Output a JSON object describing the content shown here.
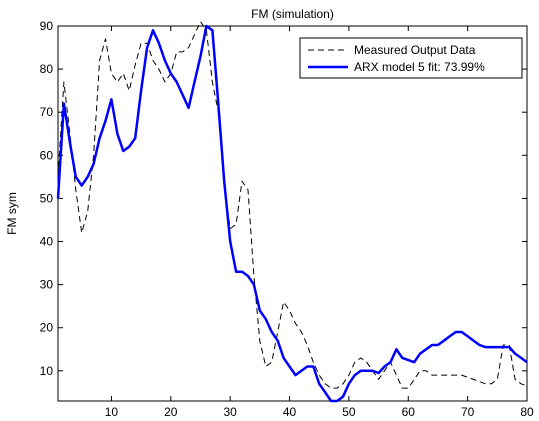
{
  "chart_data": {
    "type": "line",
    "title": "FM (simulation)",
    "xlabel": "",
    "ylabel": "FM sym",
    "xlim": [
      1,
      80
    ],
    "ylim": [
      3,
      90
    ],
    "xticks": [
      10,
      20,
      30,
      40,
      50,
      60,
      70,
      80
    ],
    "yticks": [
      10,
      20,
      30,
      40,
      50,
      60,
      70,
      80,
      90
    ],
    "grid": false,
    "legend_position": "top-right",
    "series": [
      {
        "name": "Measured Output Data",
        "color": "#000000",
        "style": "dashed",
        "x": [
          1,
          2,
          3,
          4,
          5,
          6,
          7,
          8,
          9,
          10,
          11,
          12,
          13,
          14,
          15,
          16,
          17,
          18,
          19,
          20,
          21,
          22,
          23,
          24,
          25,
          26,
          27,
          28,
          29,
          30,
          31,
          32,
          33,
          34,
          35,
          36,
          37,
          38,
          39,
          40,
          41,
          42,
          43,
          44,
          45,
          46,
          47,
          48,
          49,
          50,
          51,
          52,
          53,
          54,
          55,
          56,
          57,
          58,
          59,
          60,
          61,
          62,
          63,
          64,
          65,
          66,
          67,
          68,
          69,
          70,
          71,
          72,
          73,
          74,
          75,
          76,
          77,
          78,
          79,
          80
        ],
        "y": [
          55,
          77,
          65,
          52,
          42,
          47,
          60,
          82,
          87,
          79,
          77,
          79,
          75,
          81,
          86,
          86,
          82,
          80,
          77,
          79,
          84,
          84,
          85,
          88,
          91,
          89,
          77,
          70,
          53,
          43,
          44,
          54,
          52,
          32,
          17,
          11,
          12,
          19,
          26,
          24,
          21,
          19,
          16,
          12,
          9,
          7,
          6,
          6,
          7,
          9,
          12,
          13,
          12,
          10,
          8,
          10,
          12,
          9,
          6,
          6,
          8,
          10,
          10,
          9,
          9,
          9,
          9,
          9,
          9,
          8.5,
          8,
          7.5,
          7,
          7,
          8,
          16,
          16,
          8,
          7,
          6.5
        ]
      },
      {
        "name": "ARX model 5 fit: 73.99%",
        "color": "#0000ff",
        "style": "solid",
        "x": [
          1,
          2,
          3,
          4,
          5,
          6,
          7,
          8,
          9,
          10,
          11,
          12,
          13,
          14,
          15,
          16,
          17,
          18,
          19,
          20,
          21,
          22,
          23,
          24,
          25,
          26,
          27,
          28,
          29,
          30,
          31,
          32,
          33,
          34,
          35,
          36,
          37,
          38,
          39,
          40,
          41,
          42,
          43,
          44,
          45,
          46,
          47,
          48,
          49,
          50,
          51,
          52,
          53,
          54,
          55,
          56,
          57,
          58,
          59,
          60,
          61,
          62,
          63,
          64,
          65,
          66,
          67,
          68,
          69,
          70,
          71,
          72,
          73,
          74,
          75,
          76,
          77,
          78,
          79,
          80
        ],
        "y": [
          50,
          72,
          63,
          55,
          53,
          55,
          58,
          64,
          68,
          73,
          65,
          61,
          62,
          64,
          75,
          85,
          89,
          86,
          82,
          79,
          77,
          74,
          71,
          77,
          83,
          90,
          89,
          72,
          54,
          40,
          33,
          33,
          32,
          30,
          24,
          22,
          19,
          17,
          13,
          11,
          9,
          10,
          11,
          11,
          7,
          5,
          3,
          3,
          4,
          7,
          9,
          10,
          10,
          10,
          9.5,
          11,
          12,
          15,
          13,
          12.5,
          12,
          14,
          15,
          16,
          16,
          17,
          18,
          19,
          19,
          18,
          17,
          16,
          15.5,
          15.5,
          15.5,
          15.5,
          15.5,
          14,
          13,
          12
        ]
      }
    ]
  }
}
